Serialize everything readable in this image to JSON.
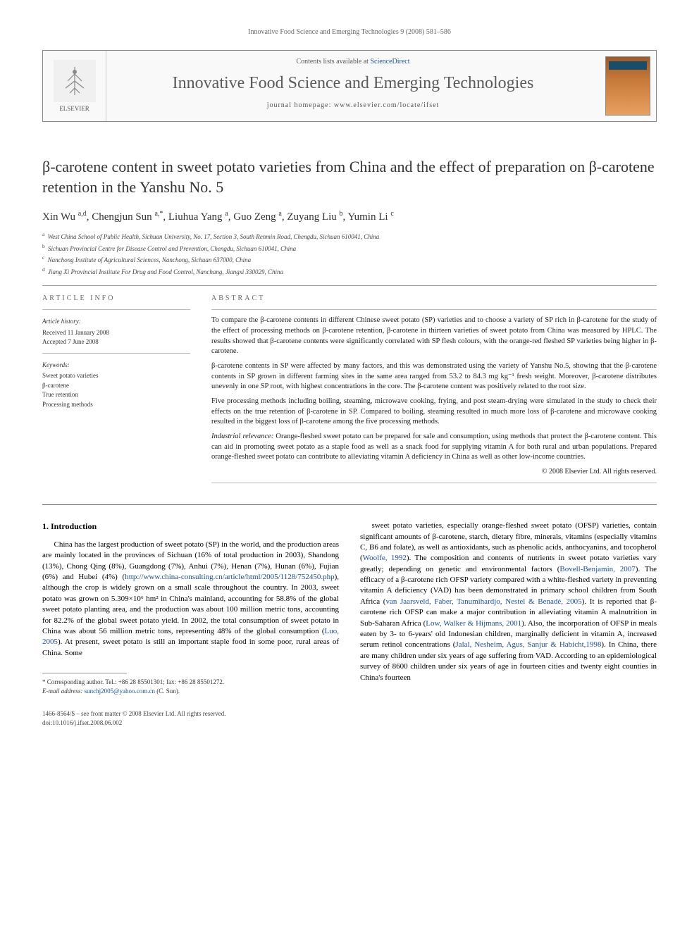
{
  "running_header": "Innovative Food Science and Emerging Technologies 9 (2008) 581–586",
  "header": {
    "contents_prefix": "Contents lists available at ",
    "contents_link": "ScienceDirect",
    "journal_title": "Innovative Food Science and Emerging Technologies",
    "homepage_label": "journal homepage: www.elsevier.com/locate/ifset",
    "publisher": "ELSEVIER"
  },
  "article": {
    "title": "β-carotene content in sweet potato varieties from China and the effect of preparation on β-carotene retention in the Yanshu No. 5",
    "authors_html": "Xin Wu <sup>a,d</sup>, Chengjun Sun <sup>a,*</sup>, Liuhua Yang <sup>a</sup>, Guo Zeng <sup>a</sup>, Zuyang Liu <sup>b</sup>, Yumin Li <sup>c</sup>",
    "affiliations": [
      {
        "sup": "a",
        "text": "West China School of Public Health, Sichuan University, No. 17, Section 3, South Renmin Road, Chengdu, Sichuan 610041, China"
      },
      {
        "sup": "b",
        "text": "Sichuan Provincial Centre for Disease Control and Prevention, Chengdu, Sichuan 610041, China"
      },
      {
        "sup": "c",
        "text": "Nanchong Institute of Agricultural Sciences, Nanchong, Sichuan 637000, China"
      },
      {
        "sup": "d",
        "text": "Jiang Xi Provincial Institute For Drug and Food Control, Nanchang, Jiangxi 330029, China"
      }
    ]
  },
  "article_info": {
    "section_label": "ARTICLE INFO",
    "history_heading": "Article history:",
    "history": [
      "Received 11 January 2008",
      "Accepted 7 June 2008"
    ],
    "keywords_heading": "Keywords:",
    "keywords": [
      "Sweet potato varieties",
      "β-carotene",
      "True retention",
      "Processing methods"
    ]
  },
  "abstract": {
    "section_label": "ABSTRACT",
    "paragraphs": [
      "To compare the β-carotene contents in different Chinese sweet potato (SP) varieties and to choose a variety of SP rich in β-carotene for the study of the effect of processing methods on β-carotene retention, β-carotene in thirteen varieties of sweet potato from China was measured by HPLC. The results showed that β-carotene contents were significantly correlated with SP flesh colours, with the orange-red fleshed SP varieties being higher in β-carotene.",
      "β-carotene contents in SP were affected by many factors, and this was demonstrated using the variety of Yanshu No.5, showing that the β-carotene contents in SP grown in different farming sites in the same area ranged from 53.2 to 84.3 mg kg⁻¹ fresh weight. Moreover, β-carotene distributes unevenly in one SP root, with highest concentrations in the core. The β-carotene content was positively related to the root size.",
      "Five processing methods including boiling, steaming, microwave cooking, frying, and post steam-drying were simulated in the study to check their effects on the true retention of β-carotene in SP. Compared to boiling, steaming resulted in much more loss of β-carotene and microwave cooking resulted in the biggest loss of β-carotene among the five processing methods."
    ],
    "industrial_label": "Industrial relevance:",
    "industrial_text": "Orange-fleshed sweet potato can be prepared for sale and consumption, using methods that protect the β-carotene content. This can aid in promoting sweet potato as a staple food as well as a snack food for supplying vitamin A for both rural and urban populations. Prepared orange-fleshed sweet potato can contribute to alleviating vitamin A deficiency in China as well as other low-income countries.",
    "copyright": "© 2008 Elsevier Ltd. All rights reserved."
  },
  "body": {
    "section_number": "1.",
    "section_title": "Introduction",
    "left_paragraph": "China has the largest production of sweet potato (SP) in the world, and the production areas are mainly located in the provinces of Sichuan (16% of total production in 2003), Shandong (13%), Chong Qing (8%), Guangdong (7%), Anhui (7%), Henan (7%), Hunan (6%), Fujian (6%) and Hubei (4%) (http://www.china-consulting.cn/article/html/2005/1128/752450.php), although the crop is widely grown on a small scale throughout the country. In 2003, sweet potato was grown on 5.309×10⁶ hm² in China's mainland, accounting for 58.8% of the global sweet potato planting area, and the production was about 100 million metric tons, accounting for 82.2% of the global sweet potato yield. In 2002, the total consumption of sweet potato in China was about 56 million metric tons, representing 48% of the global consumption (Luo, 2005). At present, sweet potato is still an important staple food in some poor, rural areas of China. Some",
    "right_paragraph": "sweet potato varieties, especially orange-fleshed sweet potato (OFSP) varieties, contain significant amounts of β-carotene, starch, dietary fibre, minerals, vitamins (especially vitamins C, B6 and folate), as well as antioxidants, such as phenolic acids, anthocyanins, and tocopherol (Woolfe, 1992). The composition and contents of nutrients in sweet potato varieties vary greatly; depending on genetic and environmental factors (Bovell-Benjamin, 2007). The efficacy of a β-carotene rich OFSP variety compared with a white-fleshed variety in preventing vitamin A deficiency (VAD) has been demonstrated in primary school children from South Africa (van Jaarsveld, Faber, Tanumihardjo, Nestel & Benadé, 2005). It is reported that β-carotene rich OFSP can make a major contribution in alleviating vitamin A malnutrition in Sub-Saharan Africa (Low, Walker & Hijmans, 2001). Also, the incorporation of OFSP in meals eaten by 3- to 6-years' old Indonesian children, marginally deficient in vitamin A, increased serum retinol concentrations (Jalal, Nesheim, Agus, Sanjur & Habicht,1998). In China, there are many children under six years of age suffering from VAD. According to an epidemiological survey of 8600 children under six years of age in fourteen cities and twenty eight counties in China's fourteen"
  },
  "footnotes": {
    "corresponding": "* Corresponding author. Tel.: +86 28 85501301; fax: +86 28 85501272.",
    "email_label": "E-mail address:",
    "email": "sunchj2005@yahoo.com.cn",
    "email_suffix": "(C. Sun)."
  },
  "bottom": {
    "issn_line": "1466-8564/$ – see front matter © 2008 Elsevier Ltd. All rights reserved.",
    "doi": "doi:10.1016/j.ifset.2008.06.002"
  },
  "colors": {
    "link": "#1a4d8f",
    "text": "#222222",
    "muted": "#666666",
    "border": "#999999"
  }
}
